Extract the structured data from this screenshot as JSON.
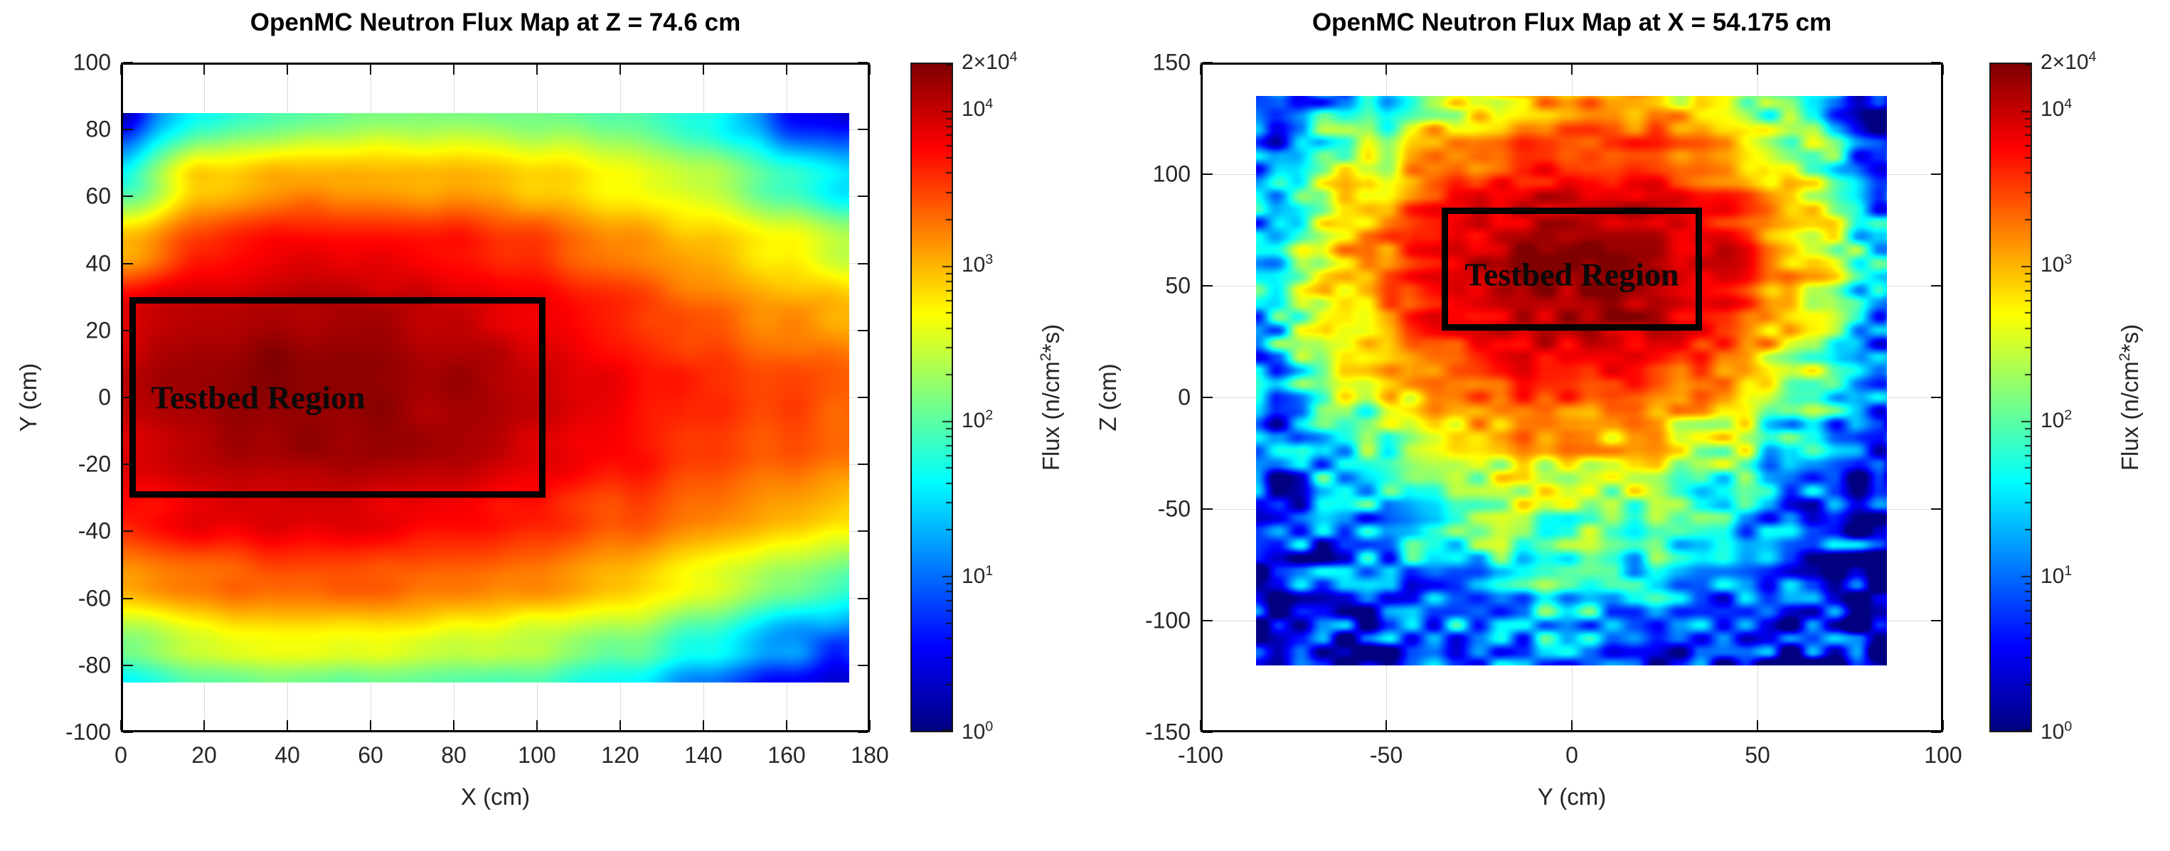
{
  "figure": {
    "background": "#ffffff"
  },
  "colorbar": {
    "scale": "log",
    "min": 1,
    "max": 20000,
    "colormap": "jet",
    "label_parts": {
      "pre": "Flux (n/cm",
      "sup": "2",
      "post": "*s)"
    },
    "ticks": [
      {
        "pre": "10",
        "sup": "0",
        "value": 1
      },
      {
        "pre": "10",
        "sup": "1",
        "value": 10
      },
      {
        "pre": "10",
        "sup": "2",
        "value": 100
      },
      {
        "pre": "10",
        "sup": "3",
        "value": 1000
      },
      {
        "pre": "10",
        "sup": "4",
        "value": 10000
      },
      {
        "pre": "2×10",
        "sup": "4",
        "value": 20000
      }
    ]
  },
  "chart_data": [
    {
      "type": "heatmap",
      "title": "OpenMC Neutron Flux Map at Z = 74.6 cm",
      "xlabel": "X (cm)",
      "ylabel": "Y (cm)",
      "xlim": [
        0,
        180
      ],
      "ylim": [
        -100,
        100
      ],
      "xticks": [
        0,
        20,
        40,
        60,
        80,
        100,
        120,
        140,
        160,
        180
      ],
      "yticks": [
        -100,
        -80,
        -60,
        -40,
        -20,
        0,
        20,
        40,
        60,
        80,
        100
      ],
      "grid_on": true,
      "color_scale": {
        "type": "log",
        "min": 1,
        "max": 20000,
        "units": "n/cm^2*s"
      },
      "extent": {
        "x": [
          0,
          175
        ],
        "y": [
          -85,
          85
        ]
      },
      "grid": {
        "x": [
          0,
          20,
          40,
          60,
          80,
          100,
          120,
          140,
          160,
          175
        ],
        "y": [
          85,
          65,
          45,
          25,
          5,
          -15,
          -35,
          -55,
          -75,
          -85
        ],
        "log10_flux": [
          [
            0.4,
            1.7,
            2.0,
            2.2,
            2.2,
            2.1,
            2.0,
            1.7,
            0.7,
            0.4
          ],
          [
            1.8,
            2.9,
            3.1,
            3.1,
            3.0,
            2.9,
            2.7,
            2.4,
            1.9,
            1.5
          ],
          [
            3.0,
            3.6,
            3.8,
            3.8,
            3.7,
            3.5,
            3.2,
            3.0,
            2.7,
            2.4
          ],
          [
            3.9,
            4.05,
            4.1,
            4.1,
            4.0,
            3.85,
            3.6,
            3.35,
            3.15,
            3.0
          ],
          [
            4.0,
            4.2,
            4.3,
            4.28,
            4.15,
            4.0,
            3.8,
            3.6,
            3.5,
            3.4
          ],
          [
            3.95,
            4.1,
            4.2,
            4.2,
            4.1,
            3.95,
            3.75,
            3.55,
            3.4,
            3.3
          ],
          [
            3.7,
            3.85,
            3.9,
            3.9,
            3.8,
            3.65,
            3.45,
            3.25,
            3.0,
            2.85
          ],
          [
            3.1,
            3.3,
            3.4,
            3.4,
            3.3,
            3.15,
            2.95,
            2.6,
            2.2,
            1.9
          ],
          [
            2.1,
            2.5,
            2.6,
            2.6,
            2.5,
            2.35,
            2.1,
            1.7,
            1.1,
            0.8
          ],
          [
            1.6,
            2.0,
            2.1,
            2.1,
            2.0,
            1.9,
            1.6,
            1.2,
            0.6,
            0.4
          ]
        ]
      },
      "noise": {
        "cell_cm": 9,
        "seed": 11,
        "base_amp": 0.07,
        "low_amp": 0.3,
        "low_thresh": 2.2
      },
      "annotation": {
        "label": "Testbed Region",
        "x_range": [
          2,
          102
        ],
        "y_range": [
          -30,
          30
        ],
        "label_at": [
          33,
          0
        ]
      }
    },
    {
      "type": "heatmap",
      "title": "OpenMC Neutron Flux Map at X = 54.175 cm",
      "xlabel": "Y (cm)",
      "ylabel": "Z (cm)",
      "xlim": [
        -100,
        100
      ],
      "ylim": [
        -150,
        150
      ],
      "xticks": [
        -100,
        -50,
        0,
        50,
        100
      ],
      "yticks": [
        -150,
        -100,
        -50,
        0,
        50,
        100,
        150
      ],
      "grid_on": true,
      "color_scale": {
        "type": "log",
        "min": 1,
        "max": 20000,
        "units": "n/cm^2*s"
      },
      "extent": {
        "x": [
          -85,
          85
        ],
        "y": [
          -120,
          135
        ]
      },
      "grid": {
        "x": [
          -85,
          -60,
          -35,
          -10,
          15,
          40,
          65,
          85
        ],
        "y": [
          135,
          110,
          85,
          60,
          35,
          10,
          -15,
          -40,
          -65,
          -90,
          -120
        ],
        "log10_flux": [
          [
            0.3,
            1.2,
            2.4,
            3.0,
            3.1,
            2.5,
            1.3,
            0.4
          ],
          [
            0.8,
            2.2,
            3.1,
            3.5,
            3.5,
            3.2,
            2.2,
            0.8
          ],
          [
            1.3,
            2.8,
            3.6,
            4.0,
            4.0,
            3.6,
            2.6,
            1.2
          ],
          [
            1.5,
            3.0,
            3.8,
            4.25,
            4.3,
            3.9,
            2.8,
            1.4
          ],
          [
            1.4,
            2.9,
            3.7,
            4.05,
            4.1,
            3.7,
            2.6,
            1.2
          ],
          [
            1.1,
            2.5,
            3.3,
            3.7,
            3.7,
            3.3,
            2.2,
            0.9
          ],
          [
            0.7,
            1.9,
            2.8,
            3.1,
            3.0,
            2.6,
            1.5,
            0.5
          ],
          [
            0.5,
            1.4,
            2.2,
            2.5,
            2.4,
            1.9,
            1.0,
            0.4
          ],
          [
            0.4,
            1.0,
            1.7,
            2.0,
            1.8,
            1.3,
            0.7,
            0.3
          ],
          [
            0.3,
            0.7,
            1.2,
            1.5,
            1.3,
            0.9,
            0.5,
            0.2
          ],
          [
            0.2,
            0.4,
            0.8,
            1.0,
            0.9,
            0.6,
            0.3,
            0.1
          ]
        ]
      },
      "noise": {
        "cell_cm": 6,
        "seed": 42,
        "base_amp": 0.25,
        "low_amp": 1.0,
        "low_thresh": 3.7
      },
      "annotation": {
        "label": "Testbed Region",
        "x_range": [
          -35,
          35
        ],
        "y_range": [
          30,
          85
        ],
        "label_at": [
          0,
          55
        ]
      }
    }
  ]
}
